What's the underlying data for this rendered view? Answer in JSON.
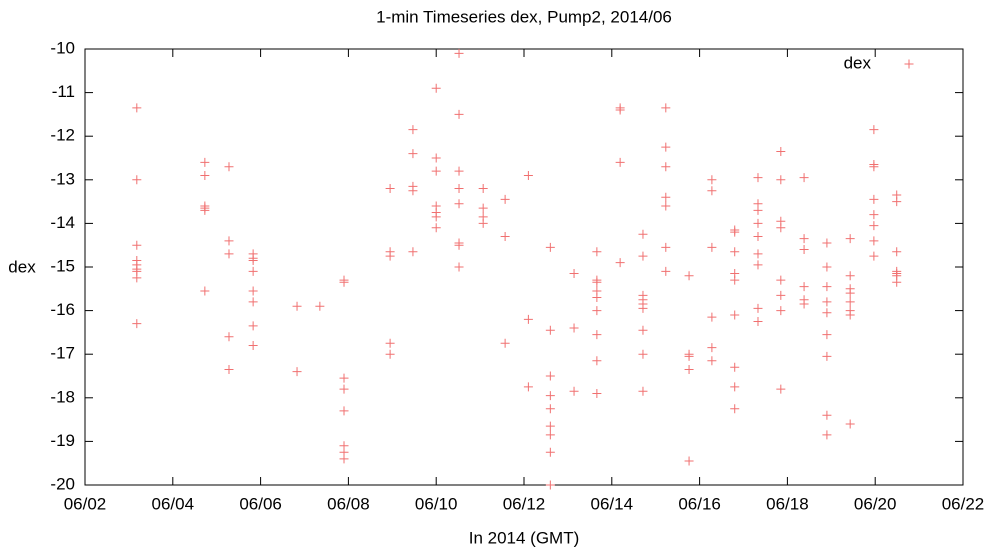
{
  "chart_data": {
    "type": "scatter",
    "title": "1-min Timeseries dex, Pump2, 2014/06",
    "x_label": "In 2014 (GMT)",
    "y_label": "dex",
    "xlim": [
      2,
      22
    ],
    "xticks": [
      {
        "value": 2,
        "label": "06/02"
      },
      {
        "value": 4,
        "label": "06/04"
      },
      {
        "value": 6,
        "label": "06/06"
      },
      {
        "value": 8,
        "label": "06/08"
      },
      {
        "value": 10,
        "label": "06/10"
      },
      {
        "value": 12,
        "label": "06/12"
      },
      {
        "value": 14,
        "label": "06/14"
      },
      {
        "value": 16,
        "label": "06/16"
      },
      {
        "value": 18,
        "label": "06/18"
      },
      {
        "value": 20,
        "label": "06/20"
      },
      {
        "value": 22,
        "label": "06/22"
      }
    ],
    "ylim": [
      -20,
      -10
    ],
    "yticks": [
      -20,
      -19,
      -18,
      -17,
      -16,
      -15,
      -14,
      -13,
      -12,
      -11,
      -10
    ],
    "legend": "top-right",
    "x": [
      3.18,
      3.18,
      3.18,
      3.18,
      3.18,
      3.18,
      3.18,
      3.18,
      3.18,
      4.73,
      4.73,
      4.73,
      4.73,
      4.73,
      4.73,
      5.28,
      5.28,
      5.28,
      5.28,
      5.28,
      5.83,
      5.83,
      5.83,
      5.83,
      5.83,
      5.83,
      5.83,
      5.83,
      6.83,
      6.83,
      7.35,
      7.9,
      7.9,
      7.9,
      7.9,
      7.9,
      7.9,
      7.9,
      7.9,
      8.95,
      8.95,
      8.95,
      8.95,
      8.95,
      9.47,
      9.47,
      9.47,
      9.47,
      9.47,
      10.0,
      10.0,
      10.0,
      10.0,
      10.0,
      10.0,
      10.0,
      10.52,
      10.52,
      10.52,
      10.52,
      10.52,
      10.52,
      10.52,
      10.52,
      11.07,
      11.07,
      11.07,
      11.07,
      11.57,
      11.57,
      11.57,
      12.1,
      12.1,
      12.1,
      12.6,
      12.6,
      12.6,
      12.6,
      12.6,
      12.6,
      12.6,
      12.6,
      12.6,
      13.14,
      13.14,
      13.14,
      13.66,
      13.66,
      13.66,
      13.66,
      13.66,
      13.66,
      13.66,
      13.66,
      13.66,
      14.19,
      14.19,
      14.19,
      14.19,
      14.71,
      14.71,
      14.71,
      14.71,
      14.71,
      14.71,
      14.71,
      14.71,
      14.71,
      15.23,
      15.23,
      15.23,
      15.23,
      15.23,
      15.23,
      15.23,
      15.76,
      15.76,
      15.76,
      15.76,
      15.76,
      16.28,
      16.28,
      16.28,
      16.28,
      16.28,
      16.28,
      16.8,
      16.8,
      16.8,
      16.8,
      16.8,
      16.8,
      16.8,
      16.8,
      16.8,
      17.33,
      17.33,
      17.33,
      17.33,
      17.33,
      17.33,
      17.33,
      17.33,
      17.33,
      17.85,
      17.85,
      17.85,
      17.85,
      17.85,
      17.85,
      17.85,
      17.85,
      18.38,
      18.38,
      18.38,
      18.38,
      18.38,
      18.38,
      18.9,
      18.9,
      18.9,
      18.9,
      18.9,
      18.9,
      18.9,
      18.9,
      18.9,
      19.43,
      19.43,
      19.43,
      19.43,
      19.43,
      19.43,
      19.43,
      19.43,
      19.97,
      19.97,
      19.97,
      19.97,
      19.97,
      19.97,
      19.97,
      19.97,
      20.49,
      20.49,
      20.49,
      20.49,
      20.49,
      20.49,
      20.49
    ],
    "series": [
      {
        "name": "dex",
        "color": "#f07070",
        "values": [
          -11.35,
          -13.0,
          -14.5,
          -14.85,
          -14.95,
          -15.05,
          -15.1,
          -15.25,
          -16.3,
          -12.6,
          -12.9,
          -13.6,
          -13.65,
          -13.7,
          -15.55,
          -12.7,
          -14.4,
          -14.7,
          -16.6,
          -17.35,
          -14.7,
          -14.8,
          -14.85,
          -15.1,
          -15.55,
          -15.8,
          -16.35,
          -16.8,
          -15.9,
          -17.4,
          -15.9,
          -15.3,
          -15.35,
          -17.55,
          -17.8,
          -18.3,
          -19.1,
          -19.25,
          -19.4,
          -13.2,
          -14.65,
          -14.75,
          -16.75,
          -17.0,
          -11.85,
          -12.4,
          -13.15,
          -13.25,
          -14.65,
          -10.9,
          -12.5,
          -12.8,
          -13.6,
          -13.75,
          -13.85,
          -14.1,
          -10.1,
          -11.5,
          -12.8,
          -13.2,
          -13.55,
          -14.45,
          -14.5,
          -15.0,
          -13.2,
          -13.65,
          -13.85,
          -14.0,
          -13.45,
          -14.3,
          -16.75,
          -12.9,
          -16.2,
          -17.75,
          -14.55,
          -16.45,
          -17.5,
          -17.95,
          -18.25,
          -18.65,
          -18.85,
          -19.25,
          -20.0,
          -15.15,
          -16.4,
          -17.85,
          -14.65,
          -15.3,
          -15.35,
          -15.55,
          -15.7,
          -16.0,
          -16.55,
          -17.15,
          -17.9,
          -11.35,
          -11.4,
          -12.6,
          -14.9,
          -14.25,
          -14.75,
          -15.65,
          -15.75,
          -15.85,
          -15.95,
          -16.45,
          -17.0,
          -17.85,
          -11.35,
          -12.25,
          -12.7,
          -13.4,
          -13.6,
          -14.55,
          -15.1,
          -15.2,
          -17.0,
          -17.05,
          -17.35,
          -19.45,
          -13.0,
          -13.25,
          -14.55,
          -16.15,
          -16.85,
          -17.15,
          -14.15,
          -14.2,
          -14.65,
          -15.15,
          -15.3,
          -16.1,
          -17.3,
          -17.75,
          -18.25,
          -12.95,
          -13.55,
          -13.7,
          -14.0,
          -14.3,
          -14.7,
          -14.95,
          -15.95,
          -16.25,
          -12.35,
          -13.0,
          -13.95,
          -14.1,
          -15.3,
          -15.65,
          -16.0,
          -17.8,
          -12.95,
          -14.35,
          -14.6,
          -15.45,
          -15.75,
          -15.85,
          -14.45,
          -15.0,
          -15.45,
          -15.8,
          -16.05,
          -16.55,
          -17.05,
          -18.4,
          -18.85,
          -14.35,
          -15.2,
          -15.5,
          -15.6,
          -15.8,
          -16.0,
          -16.1,
          -18.6,
          -11.85,
          -12.65,
          -12.7,
          -13.45,
          -13.8,
          -14.05,
          -14.4,
          -14.75,
          -13.35,
          -13.5,
          -14.65,
          -15.1,
          -15.15,
          -15.2,
          -15.35
        ]
      }
    ]
  }
}
